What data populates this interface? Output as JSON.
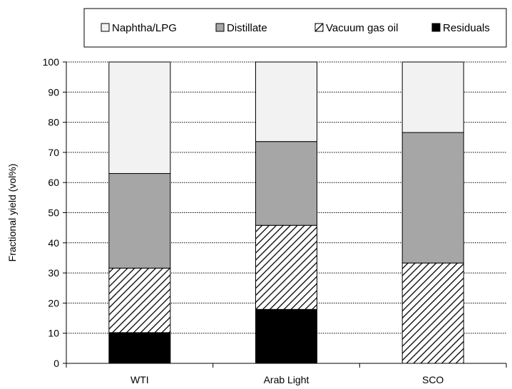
{
  "chart_data": {
    "type": "bar",
    "stacked": true,
    "categories": [
      "WTI",
      "Arab Light",
      "SCO"
    ],
    "series": [
      {
        "name": "Residuals",
        "values": [
          10.2,
          17.9,
          0
        ],
        "fill": "#000000",
        "pattern": "solid"
      },
      {
        "name": "Vacuum gas oil",
        "values": [
          21.4,
          27.9,
          33.3
        ],
        "fill": "#ffffff",
        "pattern": "hatch"
      },
      {
        "name": "Distillate",
        "values": [
          31.4,
          27.8,
          43.3
        ],
        "fill": "#a6a6a6",
        "pattern": "solid"
      },
      {
        "name": "Naphtha/LPG",
        "values": [
          37.0,
          26.4,
          23.4
        ],
        "fill": "#f2f2f2",
        "pattern": "solid"
      }
    ],
    "legend_order": [
      "Naphtha/LPG",
      "Distillate",
      "Vacuum gas oil",
      "Residuals"
    ],
    "legend_position": "top",
    "title": "",
    "xlabel": "",
    "ylabel": "Fractional yield (vol%)",
    "ylim": [
      0,
      100
    ],
    "yticks": [
      0,
      10,
      20,
      30,
      40,
      50,
      60,
      70,
      80,
      90,
      100
    ],
    "grid": true
  }
}
